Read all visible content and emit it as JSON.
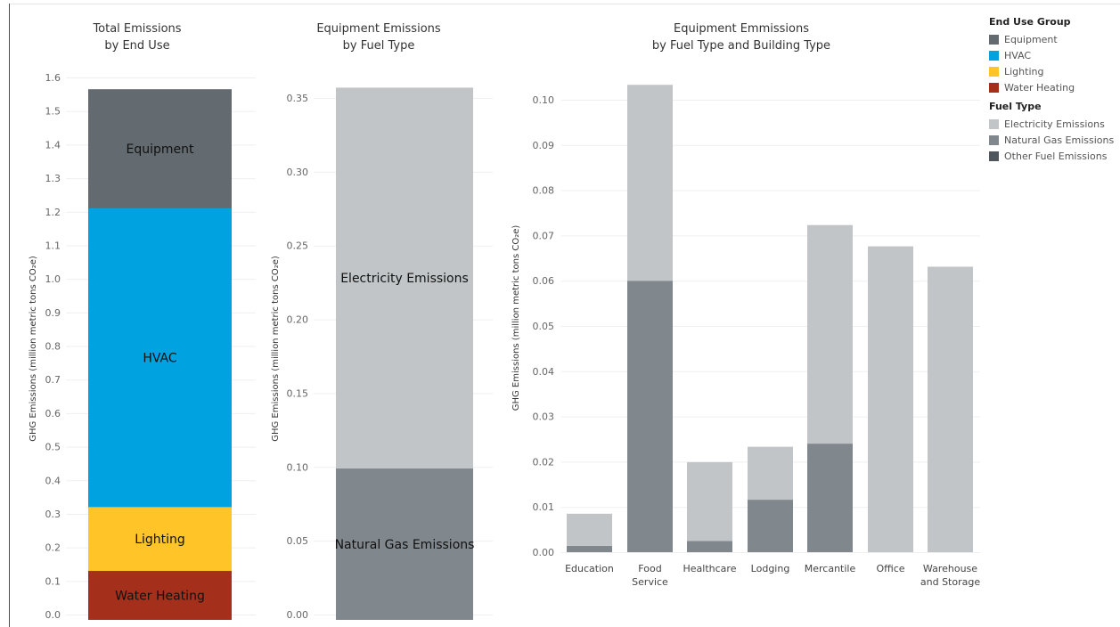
{
  "chart_data": [
    {
      "type": "bar",
      "stacked": true,
      "title": [
        "Total Emissions",
        "by End Use"
      ],
      "ylabel": "GHG Emissions (million metric tons CO₂e)",
      "ylim": [
        0,
        1.6
      ],
      "yticks": [
        "0.0",
        "0.1",
        "0.2",
        "0.3",
        "0.4",
        "0.5",
        "0.6",
        "0.7",
        "0.8",
        "0.9",
        "1.0",
        "1.1",
        "1.2",
        "1.3",
        "1.4",
        "1.5",
        "1.6"
      ],
      "categories": [
        ""
      ],
      "series": [
        {
          "name": "Water Heating",
          "values": [
            0.13
          ],
          "label": "Water Heating"
        },
        {
          "name": "Lighting",
          "values": [
            0.19
          ],
          "label": "Lighting"
        },
        {
          "name": "HVAC",
          "values": [
            0.89
          ],
          "label": "HVAC"
        },
        {
          "name": "Equipment",
          "values": [
            0.355
          ],
          "label": "Equipment"
        }
      ]
    },
    {
      "type": "bar",
      "stacked": true,
      "title": [
        "Equipment Emissions",
        "by Fuel Type"
      ],
      "ylabel": "GHG Emissions (million metric tons CO₂e)",
      "ylim": [
        0,
        0.36
      ],
      "yticks": [
        "0.00",
        "0.05",
        "0.10",
        "0.15",
        "0.20",
        "0.25",
        "0.30",
        "0.35"
      ],
      "categories": [
        ""
      ],
      "series": [
        {
          "name": "Natural Gas Emissions",
          "values": [
            0.099
          ],
          "label": "Natural Gas Emissions"
        },
        {
          "name": "Electricity Emissions",
          "values": [
            0.258
          ],
          "label": "Electricity Emissions"
        }
      ]
    },
    {
      "type": "bar",
      "stacked": true,
      "title": [
        "Equipment Emmissions",
        "by Fuel Type and Building Type"
      ],
      "ylabel": "GHG Emissions (million metric tons CO₂e)",
      "ylim": [
        0,
        0.105
      ],
      "yticks": [
        "0.00",
        "0.01",
        "0.02",
        "0.03",
        "0.04",
        "0.05",
        "0.06",
        "0.07",
        "0.08",
        "0.09",
        "0.10"
      ],
      "categories": [
        [
          "Education"
        ],
        [
          "Food",
          "Service"
        ],
        [
          "Healthcare"
        ],
        [
          "Lodging"
        ],
        [
          "Mercantile"
        ],
        [
          "Office"
        ],
        [
          "Warehouse",
          "and Storage"
        ]
      ],
      "series": [
        {
          "name": "Natural Gas Emissions",
          "values": [
            0.0014,
            0.06,
            0.0025,
            0.0116,
            0.024,
            0,
            0
          ]
        },
        {
          "name": "Electricity Emissions",
          "values": [
            0.0071,
            0.0433,
            0.0174,
            0.0117,
            0.0483,
            0.0676,
            0.0631
          ]
        }
      ]
    }
  ],
  "colors": {
    "Equipment": "#636b70",
    "HVAC": "#00a3e0",
    "Lighting": "#ffc428",
    "Water Heating": "#a4301c",
    "Electricity Emissions": "#c1c5c7",
    "Natural Gas Emissions": "#80888e",
    "Other Fuel Emissions": "#4f575c"
  },
  "legend": {
    "groups": [
      {
        "title": "End Use Group",
        "items": [
          {
            "label": "Equipment",
            "color": "#636b70"
          },
          {
            "label": "HVAC",
            "color": "#00a3e0"
          },
          {
            "label": "Lighting",
            "color": "#ffc428"
          },
          {
            "label": "Water Heating",
            "color": "#a4301c"
          }
        ]
      },
      {
        "title": "Fuel Type",
        "items": [
          {
            "label": "Electricity Emissions",
            "color": "#c1c5c7"
          },
          {
            "label": "Natural Gas Emissions",
            "color": "#80888e"
          },
          {
            "label": "Other Fuel Emissions",
            "color": "#4f575c"
          }
        ]
      }
    ]
  }
}
